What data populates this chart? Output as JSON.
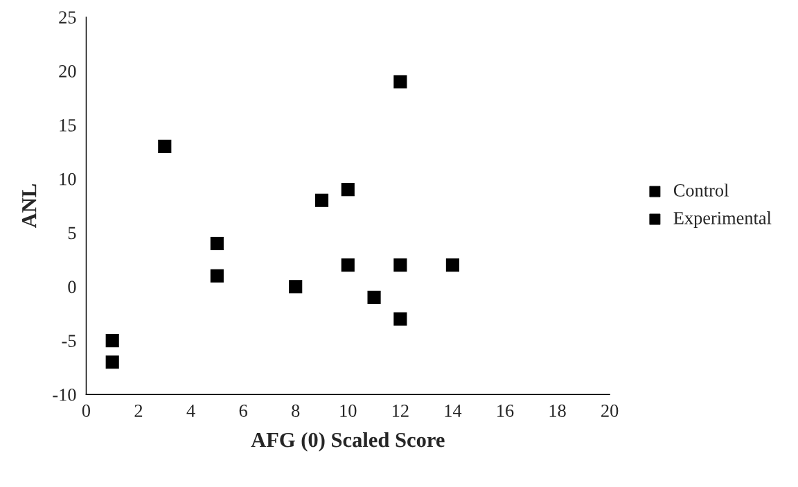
{
  "chart_data": {
    "type": "scatter",
    "xlabel": "AFG (0) Scaled Score",
    "ylabel": "ANL",
    "marker": "square",
    "legend": "right",
    "grid": false,
    "xlim": [
      0,
      20
    ],
    "xticks": [
      0,
      2,
      4,
      6,
      8,
      10,
      12,
      14,
      16,
      18,
      20
    ],
    "ylim": [
      -10,
      25
    ],
    "yticks": [
      -10,
      -5,
      0,
      5,
      10,
      15,
      20,
      25
    ],
    "series": [
      {
        "name": "Control",
        "color": "#000000",
        "x": [
          1,
          3,
          5,
          8,
          10,
          11,
          12
        ],
        "values": [
          -5,
          13,
          4,
          0,
          9,
          -1,
          19
        ]
      },
      {
        "name": "Experimental",
        "color": "#000000",
        "x": [
          1,
          5,
          9,
          10,
          12,
          12,
          14
        ],
        "values": [
          -7,
          1,
          8,
          2,
          2,
          -3,
          2
        ]
      }
    ]
  }
}
